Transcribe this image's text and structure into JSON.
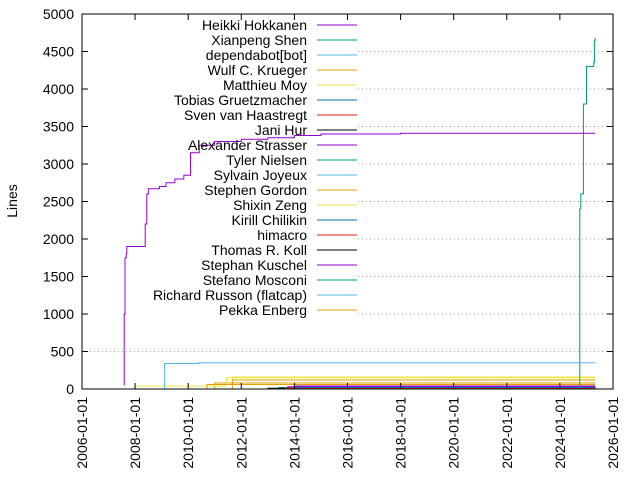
{
  "chart_data": {
    "type": "line",
    "title": "",
    "xlabel": "",
    "ylabel": "Lines",
    "ylim": [
      0,
      5000
    ],
    "xlim": [
      "2006-01-01",
      "2026-01-01"
    ],
    "x_ticks": [
      "2006-01-01",
      "2008-01-01",
      "2010-01-01",
      "2012-01-01",
      "2014-01-01",
      "2016-01-01",
      "2018-01-01",
      "2020-01-01",
      "2022-01-01",
      "2024-01-01",
      "2026-01-01"
    ],
    "y_ticks": [
      0,
      500,
      1000,
      1500,
      2000,
      2500,
      3000,
      3500,
      4000,
      4500,
      5000
    ],
    "grid": "horizontal dotted",
    "legend_position": "top-left",
    "series": [
      {
        "name": "Heikki Hokkanen",
        "color": "#9400d3",
        "points": [
          [
            "2007-08-01",
            50
          ],
          [
            "2007-08-05",
            1000
          ],
          [
            "2007-08-15",
            1750
          ],
          [
            "2007-09-01",
            1800
          ],
          [
            "2007-09-10",
            1900
          ],
          [
            "2008-05-01",
            1900
          ],
          [
            "2008-05-20",
            2200
          ],
          [
            "2008-06-10",
            2600
          ],
          [
            "2008-07-01",
            2670
          ],
          [
            "2008-12-01",
            2700
          ],
          [
            "2009-03-01",
            2750
          ],
          [
            "2009-07-01",
            2800
          ],
          [
            "2009-11-01",
            2850
          ],
          [
            "2010-02-01",
            3150
          ],
          [
            "2010-06-01",
            3250
          ],
          [
            "2011-01-01",
            3300
          ],
          [
            "2012-01-01",
            3330
          ],
          [
            "2013-01-01",
            3350
          ],
          [
            "2014-01-01",
            3380
          ],
          [
            "2015-01-01",
            3400
          ],
          [
            "2018-01-01",
            3410
          ],
          [
            "2025-05-01",
            3410
          ]
        ]
      },
      {
        "name": "Xianpeng Shen",
        "color": "#009e73",
        "points": [
          [
            "2024-09-01",
            0
          ],
          [
            "2024-10-01",
            2400
          ],
          [
            "2024-10-15",
            2600
          ],
          [
            "2024-11-20",
            3800
          ],
          [
            "2025-01-01",
            4300
          ],
          [
            "2025-04-10",
            4350
          ],
          [
            "2025-04-20",
            4650
          ],
          [
            "2025-05-01",
            4680
          ]
        ]
      },
      {
        "name": "dependabot[bot]",
        "color": "#56b4e9",
        "points": [
          [
            "2009-02-01",
            0
          ],
          [
            "2009-02-10",
            340
          ],
          [
            "2010-06-01",
            350
          ],
          [
            "2025-05-01",
            350
          ]
        ]
      },
      {
        "name": "Wulf C. Krueger",
        "color": "#e69f00",
        "points": [
          [
            "2010-09-01",
            0
          ],
          [
            "2010-09-15",
            60
          ],
          [
            "2011-04-01",
            60
          ],
          [
            "2025-05-01",
            60
          ]
        ]
      },
      {
        "name": "Matthieu Moy",
        "color": "#f0e442",
        "points": [
          [
            "2007-10-01",
            0
          ],
          [
            "2008-01-01",
            40
          ],
          [
            "2011-06-01",
            60
          ],
          [
            "2011-06-10",
            150
          ],
          [
            "2025-05-01",
            155
          ]
        ]
      },
      {
        "name": "Tobias Gruetzmacher",
        "color": "#0072b2",
        "points": [
          [
            "2013-06-01",
            0
          ],
          [
            "2014-01-01",
            20
          ],
          [
            "2025-05-01",
            25
          ]
        ]
      },
      {
        "name": "Sven van Haastregt",
        "color": "#e51e10",
        "points": [
          [
            "2013-03-01",
            0
          ],
          [
            "2013-09-01",
            12
          ],
          [
            "2025-05-01",
            12
          ]
        ]
      },
      {
        "name": "Jani Hur",
        "color": "#000000",
        "points": [
          [
            "2012-01-01",
            0
          ],
          [
            "2013-01-01",
            10
          ],
          [
            "2025-05-01",
            10
          ]
        ]
      },
      {
        "name": "Alexander Strasser",
        "color": "#9400d3",
        "points": [
          [
            "2013-04-01",
            0
          ],
          [
            "2013-10-01",
            30
          ],
          [
            "2025-05-01",
            30
          ]
        ]
      },
      {
        "name": "Tyler Nielsen",
        "color": "#009e73",
        "points": [
          [
            "2014-01-01",
            0
          ],
          [
            "2014-06-01",
            15
          ],
          [
            "2025-05-01",
            15
          ]
        ]
      },
      {
        "name": "Sylvain Joyeux",
        "color": "#56b4e9",
        "points": [
          [
            "2015-01-01",
            0
          ],
          [
            "2016-01-01",
            8
          ],
          [
            "2025-05-01",
            8
          ]
        ]
      },
      {
        "name": "Stephen Gordon",
        "color": "#e69f00",
        "points": [
          [
            "2011-06-01",
            0
          ],
          [
            "2011-09-01",
            120
          ],
          [
            "2025-05-01",
            120
          ]
        ]
      },
      {
        "name": "Shixin Zeng",
        "color": "#f0e442",
        "points": [
          [
            "2011-06-01",
            0
          ],
          [
            "2011-09-01",
            160
          ],
          [
            "2025-05-01",
            160
          ]
        ]
      },
      {
        "name": "Kirill Chilikin",
        "color": "#0072b2",
        "points": [
          [
            "2012-06-01",
            0
          ],
          [
            "2013-01-01",
            5
          ],
          [
            "2025-05-01",
            5
          ]
        ]
      },
      {
        "name": "himacro",
        "color": "#e51e10",
        "points": [
          [
            "2014-06-01",
            0
          ],
          [
            "2015-01-01",
            5
          ],
          [
            "2025-05-01",
            5
          ]
        ]
      },
      {
        "name": "Thomas R. Koll",
        "color": "#000000",
        "points": [
          [
            "2016-01-01",
            0
          ],
          [
            "2017-01-01",
            3
          ],
          [
            "2025-05-01",
            3
          ]
        ]
      },
      {
        "name": "Stephan Kuschel",
        "color": "#9400d3",
        "points": [
          [
            "2013-06-01",
            0
          ],
          [
            "2014-01-01",
            40
          ],
          [
            "2025-05-01",
            40
          ]
        ]
      },
      {
        "name": "Stefano Mosconi",
        "color": "#009e73",
        "points": [
          [
            "2012-06-01",
            0
          ],
          [
            "2013-06-01",
            20
          ],
          [
            "2025-05-01",
            20
          ]
        ]
      },
      {
        "name": "Richard Russon (flatcap)",
        "color": "#56b4e9",
        "points": [
          [
            "2014-01-01",
            0
          ],
          [
            "2015-01-01",
            10
          ],
          [
            "2025-05-01",
            10
          ]
        ]
      },
      {
        "name": "Pekka Enberg",
        "color": "#e69f00",
        "points": [
          [
            "2010-09-01",
            0
          ],
          [
            "2011-01-01",
            80
          ],
          [
            "2025-05-01",
            85
          ]
        ]
      }
    ]
  }
}
